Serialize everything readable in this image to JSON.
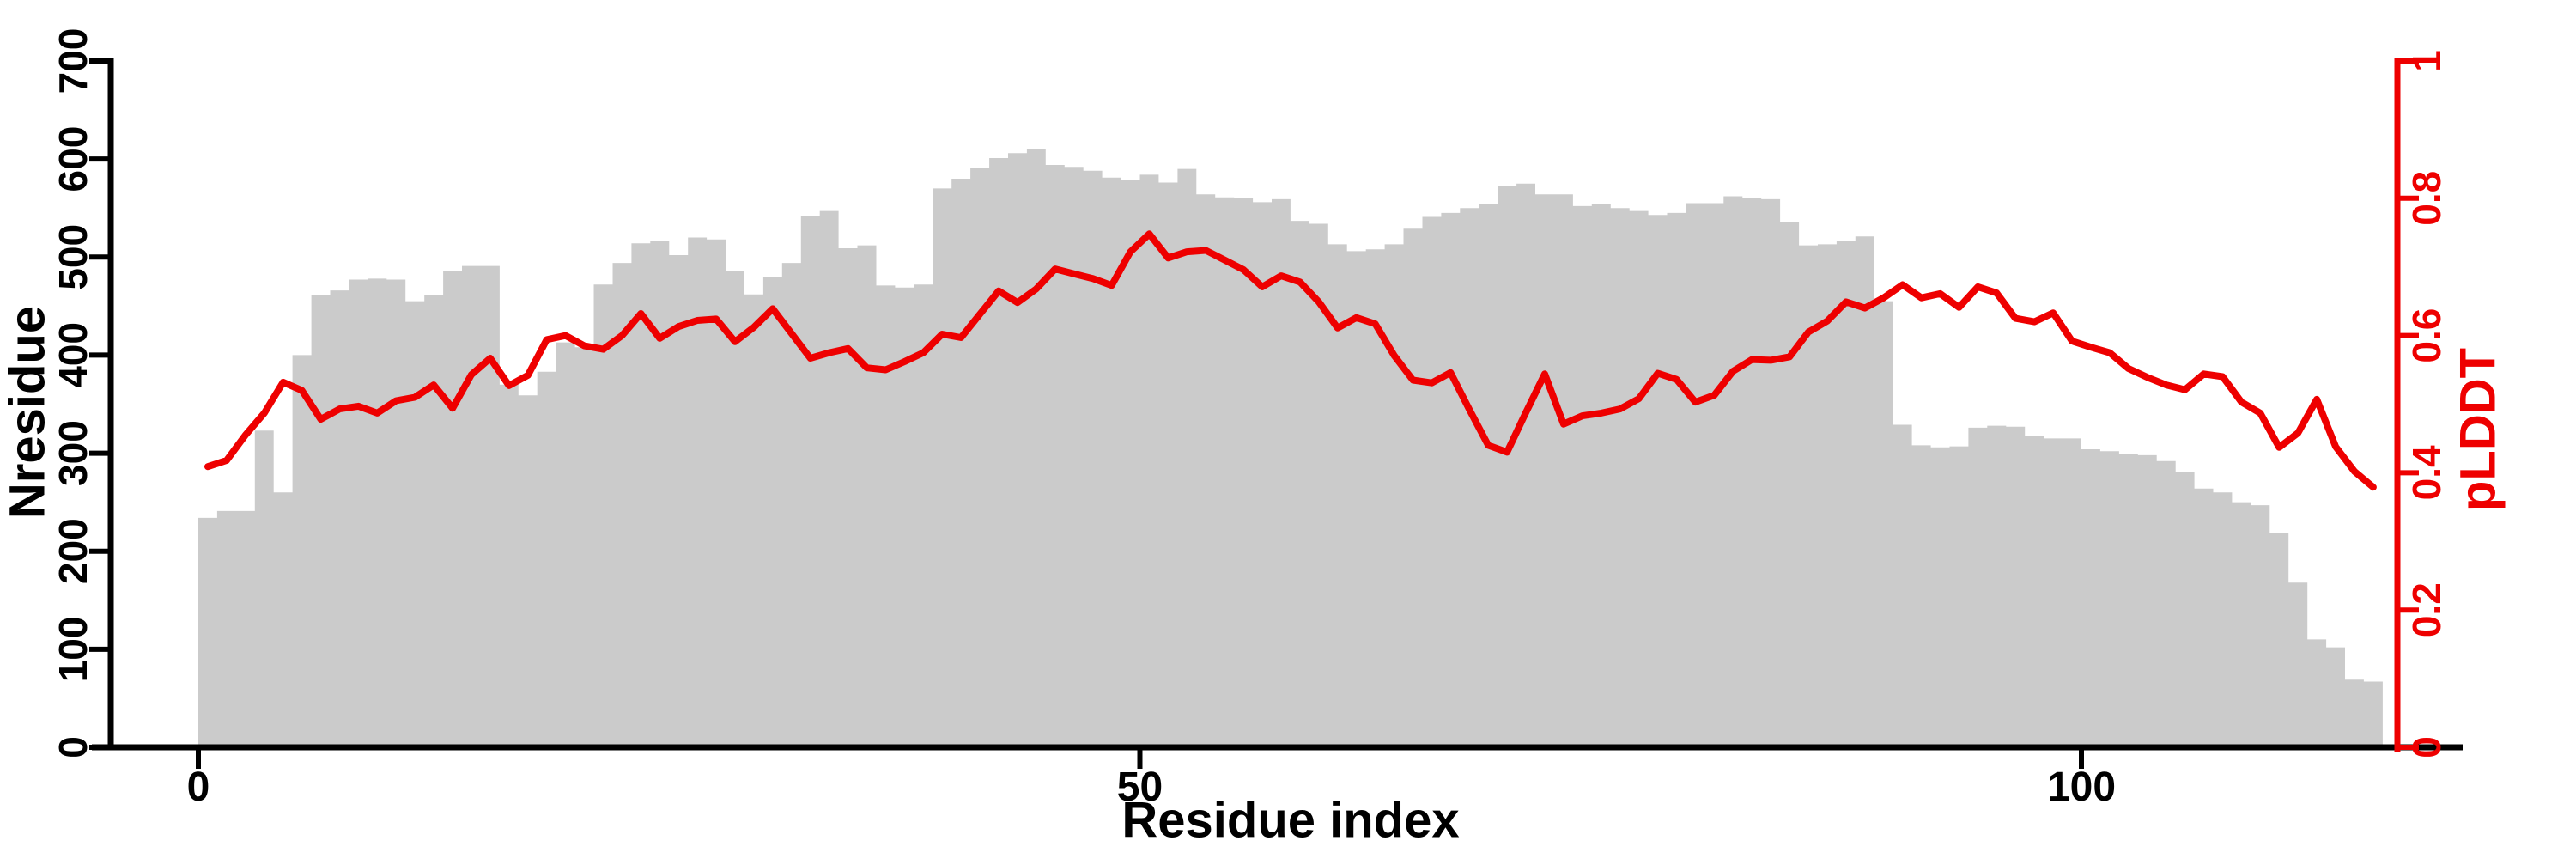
{
  "chart_data": {
    "type": "bar",
    "subtype": "dual-axis bar+line profile",
    "title": "",
    "xlabel": "Residue index",
    "ylabel_left": "Nresidue",
    "ylabel_right": "pLDDT",
    "x_ticks": [
      0,
      50,
      100
    ],
    "y_ticks_left": [
      0,
      100,
      200,
      300,
      400,
      500,
      600,
      700
    ],
    "y_ticks_right": [
      0,
      0.2,
      0.4,
      0.6,
      0.8,
      1
    ],
    "y_tick_labels_right": [
      "0",
      "0.2",
      "0.4",
      "0.6",
      "0.8",
      "1"
    ],
    "xlim": [
      0,
      116
    ],
    "ylim_left": [
      0,
      700
    ],
    "ylim_right": [
      0,
      1
    ],
    "grid": false,
    "legend": "none",
    "colors": {
      "bar_fill": "#cbcbcb",
      "line": "#ee0000",
      "axis_black": "#000000",
      "axis_red": "#ee0000",
      "background": "#ffffff"
    },
    "x_start_index": 0,
    "series": [
      {
        "name": "Nresidue",
        "type": "bar",
        "axis": "left",
        "values": [
          234,
          241,
          241,
          323,
          260,
          400,
          461,
          466,
          477,
          478,
          477,
          455,
          461,
          486,
          491,
          491,
          370,
          359,
          383,
          413,
          408,
          472,
          494,
          514,
          516,
          502,
          520,
          518,
          486,
          462,
          480,
          494,
          542,
          547,
          509,
          512,
          471,
          469,
          472,
          570,
          580,
          591,
          601,
          606,
          610,
          594,
          592,
          588,
          581,
          579,
          584,
          576,
          590,
          564,
          561,
          560,
          556,
          559,
          537,
          534,
          513,
          506,
          508,
          513,
          529,
          541,
          545,
          550,
          554,
          573,
          575,
          564,
          564,
          552,
          554,
          550,
          547,
          543,
          545,
          555,
          555,
          562,
          560,
          559,
          536,
          512,
          513,
          516,
          521,
          455,
          329,
          308,
          306,
          307,
          326,
          328,
          327,
          318,
          315,
          315,
          304,
          302,
          299,
          298,
          292,
          281,
          264,
          260,
          250,
          247,
          219,
          168,
          110,
          102,
          69,
          67
        ]
      },
      {
        "name": "pLDDT",
        "type": "line",
        "axis": "right",
        "values": [
          0.409,
          0.418,
          0.455,
          0.487,
          0.532,
          0.52,
          0.478,
          0.493,
          0.497,
          0.487,
          0.505,
          0.51,
          0.528,
          0.494,
          0.543,
          0.567,
          0.527,
          0.542,
          0.594,
          0.6,
          0.585,
          0.58,
          0.6,
          0.632,
          0.596,
          0.613,
          0.622,
          0.624,
          0.591,
          0.612,
          0.639,
          0.603,
          0.567,
          0.575,
          0.581,
          0.553,
          0.55,
          0.562,
          0.575,
          0.602,
          0.597,
          0.631,
          0.665,
          0.648,
          0.668,
          0.697,
          0.69,
          0.683,
          0.673,
          0.722,
          0.748,
          0.713,
          0.722,
          0.724,
          0.71,
          0.696,
          0.671,
          0.687,
          0.678,
          0.649,
          0.611,
          0.626,
          0.617,
          0.571,
          0.535,
          0.531,
          0.546,
          0.492,
          0.44,
          0.43,
          0.488,
          0.544,
          0.471,
          0.483,
          0.487,
          0.493,
          0.508,
          0.545,
          0.536,
          0.503,
          0.513,
          0.548,
          0.565,
          0.564,
          0.569,
          0.605,
          0.621,
          0.649,
          0.64,
          0.655,
          0.674,
          0.655,
          0.661,
          0.641,
          0.671,
          0.662,
          0.625,
          0.62,
          0.633,
          0.592,
          0.583,
          0.575,
          0.552,
          0.539,
          0.528,
          0.521,
          0.544,
          0.54,
          0.503,
          0.487,
          0.437,
          0.458,
          0.507,
          0.438,
          0.402,
          0.379
        ]
      }
    ]
  }
}
